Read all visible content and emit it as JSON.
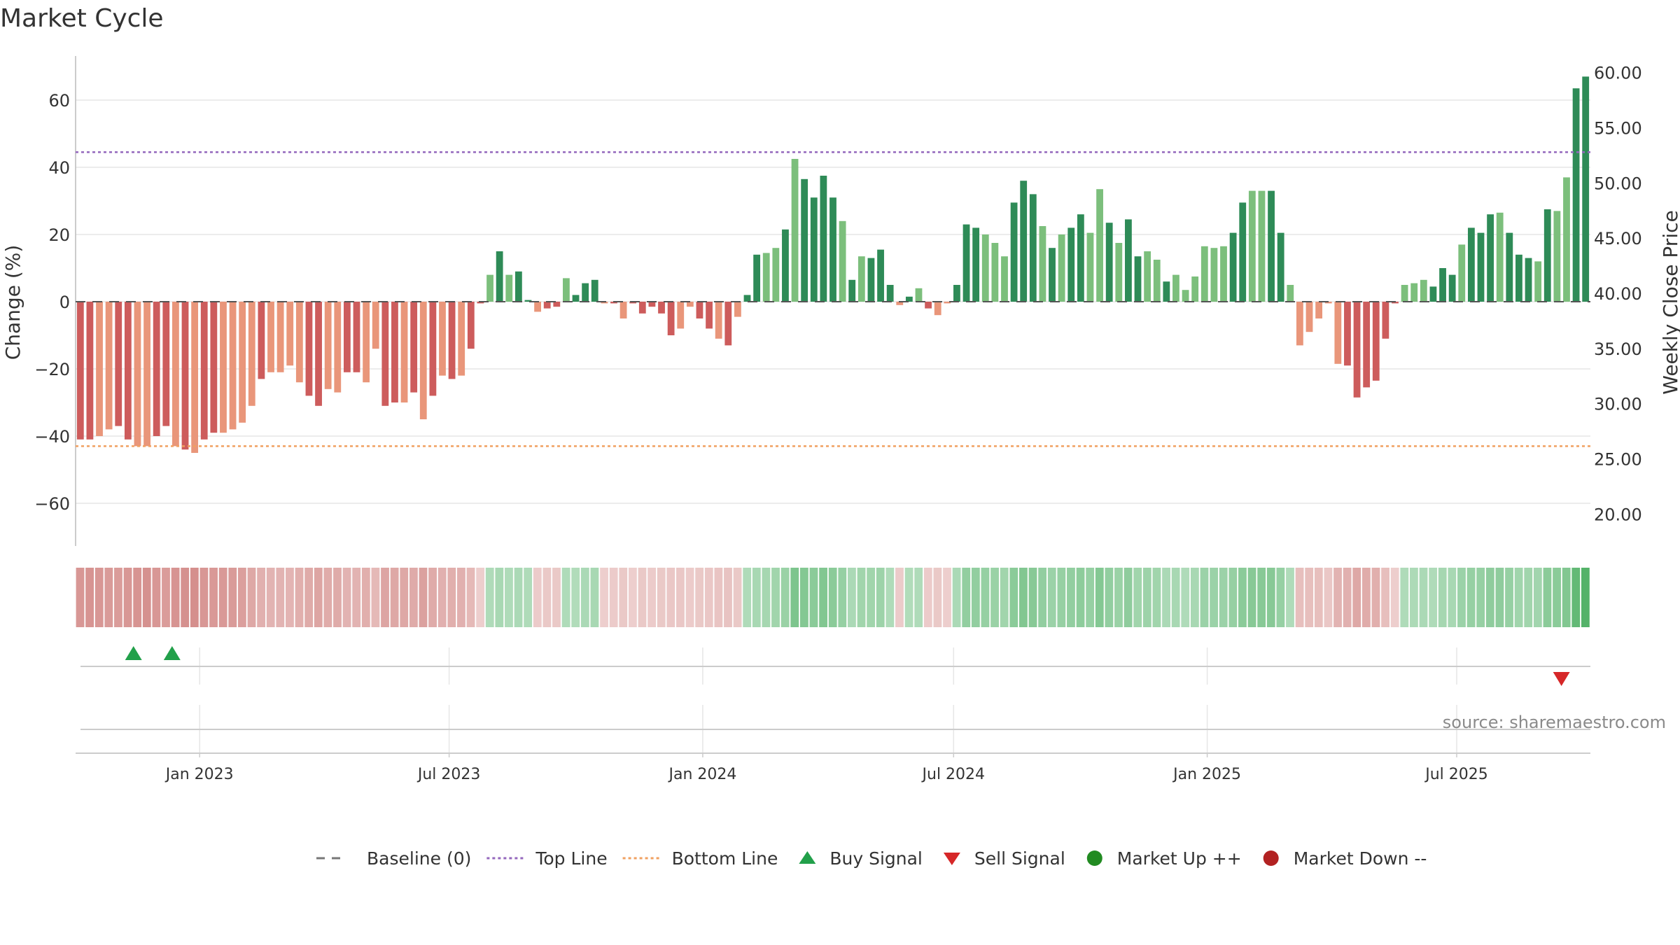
{
  "title": "Market Cycle",
  "source": "source: sharemaestro.com",
  "legend": [
    {
      "label": "Baseline (0)",
      "symbol": "dash",
      "color": "#777777"
    },
    {
      "label": "Top Line",
      "symbol": "dotted",
      "color": "#9467bd"
    },
    {
      "label": "Bottom Line",
      "symbol": "dotted",
      "color": "#f0a060"
    },
    {
      "label": "Buy Signal",
      "symbol": "triangle-up",
      "color": "#22a04a"
    },
    {
      "label": "Sell Signal",
      "symbol": "triangle-down",
      "color": "#d62728"
    },
    {
      "label": "Market Up ++",
      "symbol": "circle",
      "color": "#228b22"
    },
    {
      "label": "Market Down --",
      "symbol": "circle",
      "color": "#b22222"
    }
  ],
  "colors": {
    "up_strong": "#2e8b57",
    "up_light": "#7cbf7c",
    "down_strong": "#cd5c5c",
    "down_light": "#e9967a",
    "heat_green": "#4daf63",
    "heat_red": "#c9706d",
    "grid": "#e6e6e6",
    "axis": "#bbbbbb"
  },
  "chart_data": {
    "type": "bar",
    "ylabel": "Change (%)",
    "y2label": "Weekly Close Price",
    "ylim": [
      -73,
      73
    ],
    "y2lim": [
      17.1,
      61.5
    ],
    "y_ticks": [
      -60,
      -40,
      -20,
      0,
      20,
      40,
      60
    ],
    "y_tick_labels": [
      "−60",
      "−40",
      "−20",
      "0",
      "20",
      "40",
      "60"
    ],
    "y2_ticks": [
      "20.00",
      "25.00",
      "30.00",
      "35.00",
      "40.00",
      "45.00",
      "50.00",
      "55.00",
      "60.00"
    ],
    "x_ticks": [
      "Jan 2023",
      "Jul 2023",
      "Jan 2024",
      "Jul 2024",
      "Jan 2025",
      "Jul 2025"
    ],
    "top_line": 44.5,
    "bottom_line": -43,
    "baseline": 0,
    "grid": true,
    "legend_position": "bottom",
    "series": [
      {
        "values": [
          -41,
          -41,
          -40,
          -38,
          -37,
          -41,
          -43,
          -43,
          -40,
          -37,
          -43,
          -44,
          -45,
          -41,
          -39,
          -39,
          -38,
          -36,
          -31,
          -23,
          -21,
          -21,
          -19,
          -24,
          -28,
          -31,
          -26,
          -27,
          -21,
          -21,
          -24,
          -14,
          -31,
          -30,
          -30,
          -27,
          -35,
          -28,
          -22,
          -23,
          -22,
          -14,
          -0.5,
          8,
          15,
          8,
          9,
          0.5,
          -3,
          -2,
          -1.5,
          7,
          2,
          5.5,
          6.5,
          -0.5,
          -0.5,
          -5,
          -0.5,
          -3.5,
          -1.5,
          -3.5,
          -10,
          -8,
          -1.5,
          -5,
          -8,
          -11,
          -13,
          -4.5,
          2,
          14,
          14.5,
          16,
          21.5,
          42.5,
          36.5,
          31,
          37.5,
          31,
          24,
          6.5,
          13.5,
          13,
          15.5,
          5,
          -1,
          1.5,
          4,
          -2,
          -4,
          -0.5,
          5,
          23,
          22,
          20,
          17.5,
          13.5,
          29.5,
          36,
          32,
          22.5,
          16,
          20,
          22,
          26,
          20.5,
          33.5,
          23.5,
          17.5,
          24.5,
          13.5,
          15,
          12.5,
          6,
          8,
          3.5,
          7.5,
          16.5,
          16,
          16.5,
          20.5,
          29.5,
          33,
          33,
          33,
          20.5,
          5,
          -13,
          -9,
          -5,
          -0.5,
          -18.5,
          -19,
          -28.5,
          -25.5,
          -23.5,
          -11,
          -0.5,
          5,
          5.5,
          6.5,
          4.5,
          10,
          8,
          17,
          22,
          20.5,
          26,
          26.5,
          20.5,
          14,
          13,
          12,
          27.5,
          27,
          37,
          63.5,
          67
        ],
        "shades": "ssllssllsslslssllllsllllssllssllsslslslslsslslsslsslssslslsssssllsslslssllslsssslslssslslsllssslllssslslssllslssllsllllllssllssllllllsssssslllssslssslssslsllsslsssslsslsssss"
      }
    ],
    "heat": [
      0.65,
      0.68,
      0.66,
      0.62,
      0.6,
      0.65,
      0.68,
      0.7,
      0.65,
      0.6,
      0.68,
      0.7,
      0.72,
      0.66,
      0.63,
      0.63,
      0.61,
      0.58,
      0.5,
      0.42,
      0.4,
      0.4,
      0.38,
      0.44,
      0.48,
      0.52,
      0.46,
      0.47,
      0.4,
      0.4,
      0.44,
      0.34,
      0.52,
      0.5,
      0.5,
      0.47,
      0.56,
      0.48,
      0.42,
      0.43,
      0.42,
      0.34,
      0.15,
      0.3,
      0.35,
      0.3,
      0.32,
      0.3,
      0.18,
      0.2,
      0.2,
      0.3,
      0.28,
      0.32,
      0.34,
      0.15,
      0.18,
      0.2,
      0.15,
      0.2,
      0.18,
      0.2,
      0.22,
      0.22,
      0.18,
      0.2,
      0.22,
      0.24,
      0.25,
      0.2,
      0.3,
      0.35,
      0.36,
      0.4,
      0.45,
      0.65,
      0.6,
      0.55,
      0.62,
      0.55,
      0.48,
      0.32,
      0.4,
      0.4,
      0.42,
      0.3,
      0.18,
      0.28,
      0.3,
      0.18,
      0.2,
      0.15,
      0.32,
      0.5,
      0.5,
      0.48,
      0.45,
      0.4,
      0.55,
      0.62,
      0.58,
      0.5,
      0.44,
      0.48,
      0.5,
      0.54,
      0.48,
      0.6,
      0.5,
      0.45,
      0.52,
      0.4,
      0.42,
      0.4,
      0.32,
      0.34,
      0.3,
      0.34,
      0.44,
      0.44,
      0.44,
      0.48,
      0.55,
      0.58,
      0.58,
      0.58,
      0.48,
      0.3,
      0.3,
      0.3,
      0.3,
      0.22,
      0.4,
      0.42,
      0.5,
      0.46,
      0.44,
      0.3,
      0.15,
      0.3,
      0.31,
      0.32,
      0.3,
      0.36,
      0.34,
      0.44,
      0.48,
      0.47,
      0.52,
      0.52,
      0.47,
      0.4,
      0.4,
      0.38,
      0.55,
      0.55,
      0.62,
      0.85,
      0.95
    ],
    "buy_signals": [
      "2022-11-14",
      "2022-12-12"
    ],
    "sell_signals": [
      "2025-09-15"
    ]
  }
}
